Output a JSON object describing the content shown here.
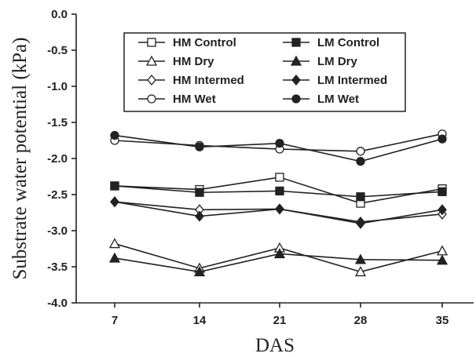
{
  "chart_data": {
    "type": "line",
    "title": "",
    "xlabel": "DAS",
    "ylabel": "Substrate water potential (kPa)",
    "x": [
      7,
      14,
      21,
      28,
      35
    ],
    "x_tick_labels": [
      "7",
      "14",
      "21",
      "28",
      "35"
    ],
    "ylim": [
      -4.0,
      0.0
    ],
    "y_ticks": [
      0.0,
      -0.5,
      -1.0,
      -1.5,
      -2.0,
      -2.5,
      -3.0,
      -3.5,
      -4.0
    ],
    "y_tick_labels": [
      "0.0",
      "-0.5",
      "-1.0",
      "-1.5",
      "-2.0",
      "-2.5",
      "-3.0",
      "-3.5",
      "-4.0"
    ],
    "grid": false,
    "legend_position": "top-center",
    "series": [
      {
        "name": "HM Control",
        "marker": "square-open",
        "values": [
          -2.38,
          -2.43,
          -2.26,
          -2.62,
          -2.42
        ]
      },
      {
        "name": "LM Control",
        "marker": "square-filled",
        "values": [
          -2.38,
          -2.47,
          -2.45,
          -2.53,
          -2.46
        ]
      },
      {
        "name": "HM Dry",
        "marker": "triangle-open",
        "values": [
          -3.18,
          -3.52,
          -3.24,
          -3.57,
          -3.28
        ]
      },
      {
        "name": "LM Dry",
        "marker": "triangle-filled",
        "values": [
          -3.38,
          -3.57,
          -3.32,
          -3.4,
          -3.41
        ]
      },
      {
        "name": "HM Intermed",
        "marker": "diamond-open",
        "values": [
          -2.6,
          -2.71,
          -2.7,
          -2.88,
          -2.77
        ]
      },
      {
        "name": "LM Intermed",
        "marker": "diamond-filled",
        "values": [
          -2.6,
          -2.8,
          -2.7,
          -2.9,
          -2.71
        ]
      },
      {
        "name": "HM Wet",
        "marker": "circle-open",
        "values": [
          -1.75,
          -1.82,
          -1.87,
          -1.9,
          -1.66
        ]
      },
      {
        "name": "LM Wet",
        "marker": "circle-filled",
        "values": [
          -1.68,
          -1.84,
          -1.79,
          -2.04,
          -1.73
        ]
      }
    ],
    "colors": {
      "line": "#222222",
      "background": "#ffffff"
    }
  }
}
